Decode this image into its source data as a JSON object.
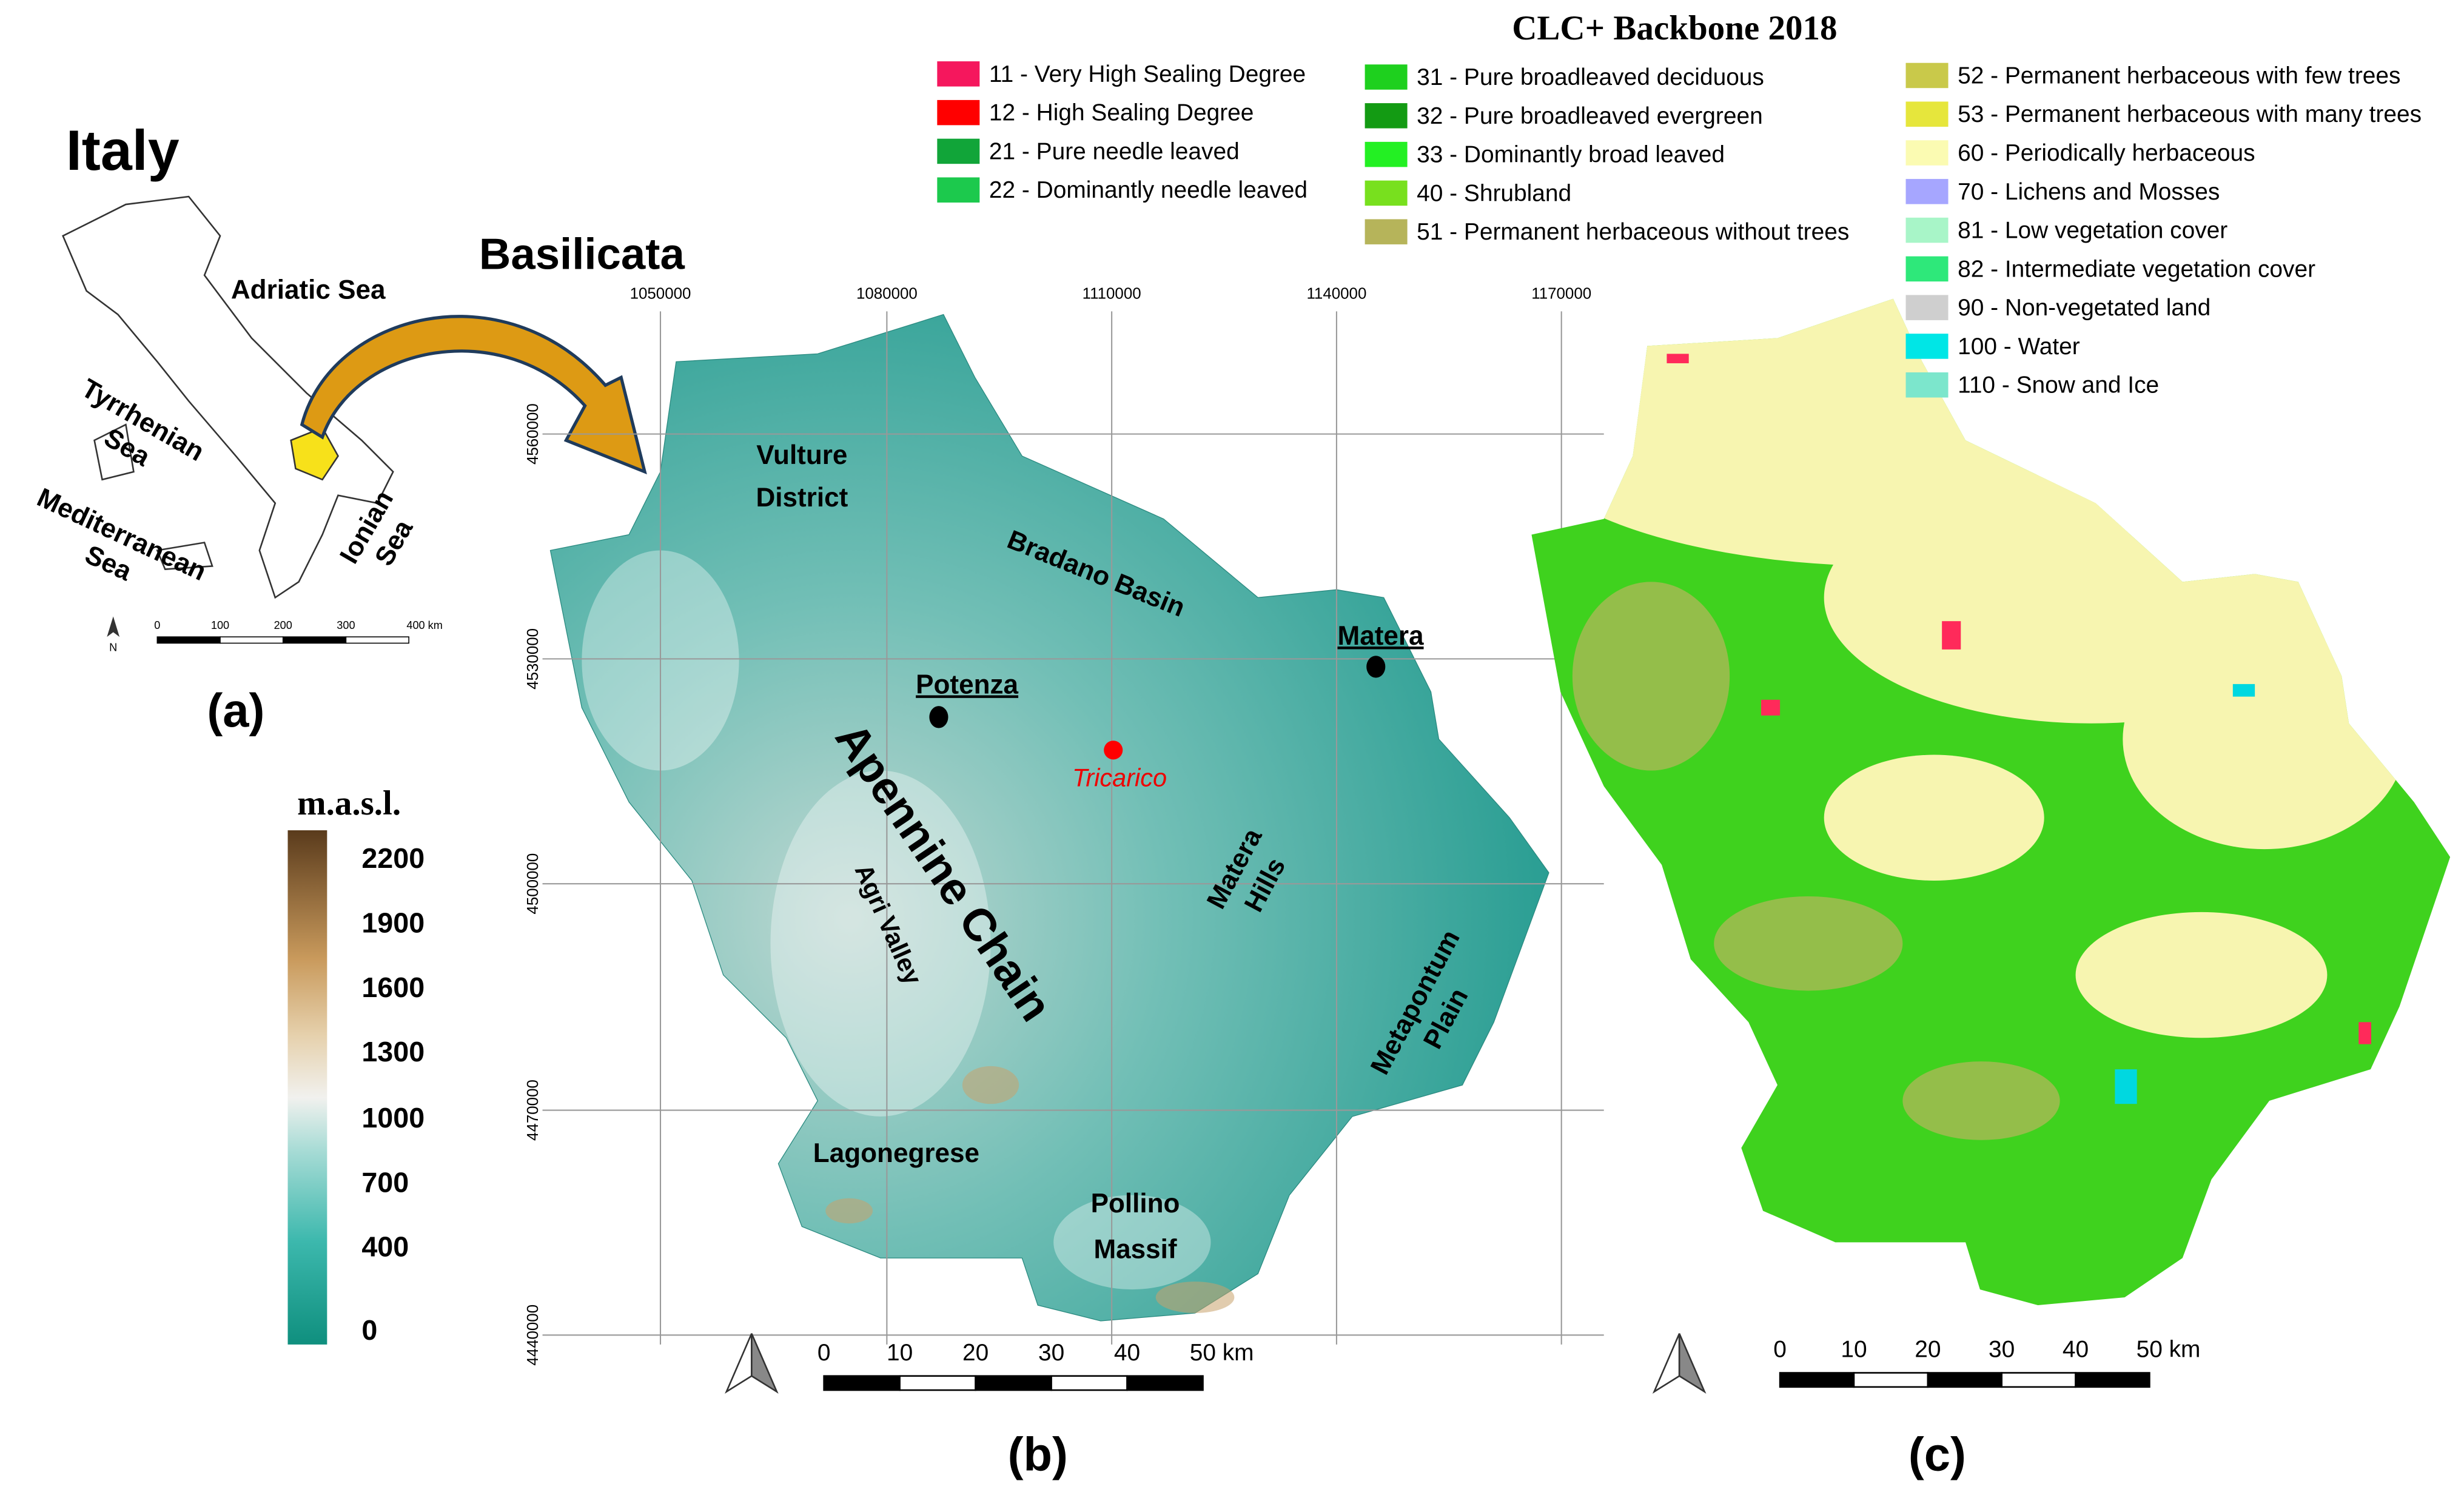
{
  "panel_a": {
    "title": "Italy",
    "region": "Basilicata",
    "adriatic": "Adriatic Sea",
    "tyrrhenian": [
      "Tyrrhenian",
      "Sea"
    ],
    "ionian": [
      "Ionian",
      "Sea"
    ],
    "mediterranean": [
      "Mediterranean",
      "Sea"
    ],
    "scale": [
      "0",
      "100",
      "200",
      "300",
      "400 km"
    ],
    "north": "N",
    "label": "(a)"
  },
  "elevation_legend": {
    "title": "m.a.s.l.",
    "ticks": [
      2200,
      1900,
      1600,
      1300,
      1000,
      700,
      400,
      0
    ]
  },
  "panel_b": {
    "x_coords": [
      1050000,
      1080000,
      1110000,
      1140000,
      1170000
    ],
    "y_coords": [
      4560000,
      4530000,
      4500000,
      4470000,
      4440000
    ],
    "vulture": [
      "Vulture",
      "District"
    ],
    "bradano": "Bradano Basin",
    "potenza": "Potenza",
    "matera": "Matera",
    "tricarico": "Tricarico",
    "apennine": "Apennine Chain",
    "agri": "Agri Valley",
    "matera_hills": [
      "Matera",
      "Hills"
    ],
    "metapontum": [
      "Metapontum",
      "Plain"
    ],
    "lagonegrese": "Lagonegrese",
    "pollino": [
      "Pollino",
      "Massif"
    ],
    "scale": [
      "0",
      "10",
      "20",
      "30",
      "40",
      "50 km"
    ],
    "label": "(b)"
  },
  "panel_c": {
    "title": "CLC+ Backbone 2018",
    "legend": [
      {
        "label": "11 - Very High Sealing Degree",
        "color": "#f5175d"
      },
      {
        "label": "12 - High Sealing Degree",
        "color": "#ff0000"
      },
      {
        "label": "21 - Pure needle leaved",
        "color": "#11a539"
      },
      {
        "label": "22 - Dominantly needle leaved",
        "color": "#1cc94d"
      },
      {
        "label": "31 - Pure broadleaved deciduous",
        "color": "#1ed01e"
      },
      {
        "label": "32 - Pure broadleaved evergreen",
        "color": "#139b13"
      },
      {
        "label": "33 - Dominantly broad leaved",
        "color": "#23f023"
      },
      {
        "label": "40 - Shrubland",
        "color": "#78e01e"
      },
      {
        "label": "51 - Permanent herbaceous without trees",
        "color": "#b6b45a"
      },
      {
        "label": "52 - Permanent herbaceous with few trees",
        "color": "#c9c94a"
      },
      {
        "label": "53 - Permanent herbaceous with many trees",
        "color": "#e6e63c"
      },
      {
        "label": "60 - Periodically herbaceous",
        "color": "#fbfbb2"
      },
      {
        "label": "70 - Lichens and Mosses",
        "color": "#a6a6ff"
      },
      {
        "label": "81 - Low vegetation cover",
        "color": "#a8f5c8"
      },
      {
        "label": "82 - Intermediate vegetation cover",
        "color": "#2ee87a"
      },
      {
        "label": "90 - Non-vegetated land",
        "color": "#cfcfcf"
      },
      {
        "label": "100 - Water",
        "color": "#00e6e6"
      },
      {
        "label": "110 - Snow and Ice",
        "color": "#7ce6cc"
      }
    ],
    "scale": [
      "0",
      "10",
      "20",
      "30",
      "40",
      "50 km"
    ],
    "label": "(c)"
  }
}
